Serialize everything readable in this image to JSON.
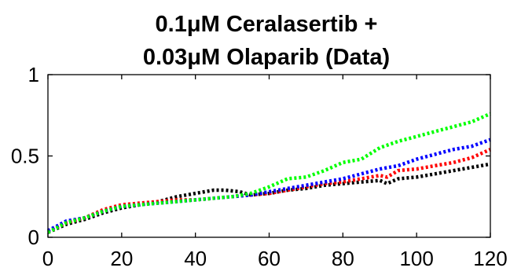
{
  "chart_data": {
    "type": "line",
    "title_lines": [
      "0.1μM Ceralasertib +",
      "0.03μM Olaparib (Data)"
    ],
    "xlabel": "",
    "ylabel": "",
    "xlim": [
      0,
      120
    ],
    "ylim": [
      0,
      1
    ],
    "xticks": [
      0,
      20,
      40,
      60,
      80,
      100,
      120
    ],
    "yticks": [
      0,
      0.5,
      1
    ],
    "ytick_labels": [
      "0",
      "0.5",
      "1"
    ],
    "grid": false,
    "line_style": "dotted",
    "series": [
      {
        "color": "#000000",
        "x": [
          0,
          5,
          10,
          15,
          20,
          25,
          30,
          35,
          40,
          45,
          48,
          52,
          55,
          60,
          65,
          70,
          75,
          80,
          85,
          90,
          92,
          95,
          100,
          105,
          110,
          115,
          120
        ],
        "y": [
          0.03,
          0.08,
          0.11,
          0.15,
          0.18,
          0.2,
          0.22,
          0.25,
          0.27,
          0.29,
          0.29,
          0.28,
          0.26,
          0.27,
          0.29,
          0.3,
          0.32,
          0.33,
          0.34,
          0.35,
          0.33,
          0.36,
          0.37,
          0.39,
          0.41,
          0.43,
          0.45
        ]
      },
      {
        "color": "#ff0000",
        "x": [
          0,
          5,
          10,
          15,
          20,
          25,
          30,
          35,
          40,
          45,
          50,
          55,
          60,
          65,
          70,
          75,
          80,
          85,
          90,
          92,
          95,
          100,
          105,
          110,
          115,
          120
        ],
        "y": [
          0.04,
          0.09,
          0.12,
          0.17,
          0.2,
          0.21,
          0.22,
          0.23,
          0.23,
          0.24,
          0.25,
          0.26,
          0.27,
          0.29,
          0.31,
          0.33,
          0.34,
          0.36,
          0.38,
          0.37,
          0.41,
          0.42,
          0.44,
          0.46,
          0.49,
          0.54
        ]
      },
      {
        "color": "#0000ff",
        "x": [
          0,
          5,
          10,
          15,
          20,
          25,
          30,
          35,
          40,
          45,
          50,
          55,
          60,
          65,
          70,
          75,
          80,
          85,
          90,
          95,
          100,
          105,
          110,
          115,
          120
        ],
        "y": [
          0.04,
          0.1,
          0.12,
          0.16,
          0.19,
          0.2,
          0.21,
          0.22,
          0.23,
          0.24,
          0.25,
          0.26,
          0.28,
          0.3,
          0.32,
          0.34,
          0.36,
          0.39,
          0.42,
          0.44,
          0.48,
          0.51,
          0.54,
          0.56,
          0.6
        ]
      },
      {
        "color": "#00ff00",
        "x": [
          0,
          5,
          10,
          15,
          20,
          25,
          30,
          35,
          40,
          45,
          50,
          55,
          60,
          65,
          70,
          75,
          80,
          85,
          90,
          95,
          100,
          105,
          110,
          115,
          120
        ],
        "y": [
          0.03,
          0.09,
          0.12,
          0.16,
          0.19,
          0.2,
          0.21,
          0.22,
          0.23,
          0.24,
          0.25,
          0.27,
          0.31,
          0.36,
          0.37,
          0.41,
          0.46,
          0.48,
          0.55,
          0.59,
          0.62,
          0.65,
          0.68,
          0.71,
          0.76
        ]
      }
    ]
  }
}
